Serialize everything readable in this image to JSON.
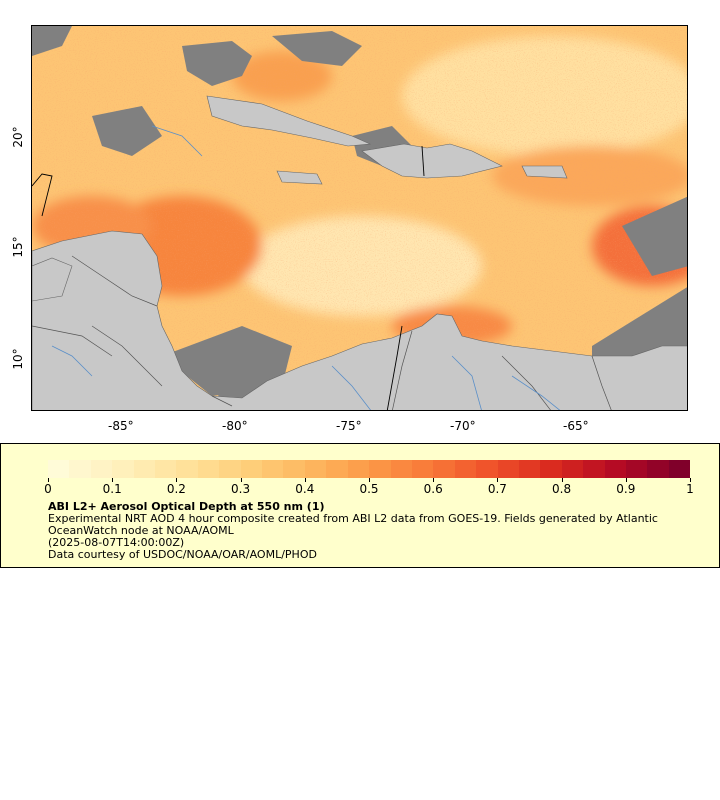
{
  "map": {
    "longitude_labels": [
      "-85°",
      "-80°",
      "-75°",
      "-70°",
      "-65°"
    ],
    "latitude_labels": [
      "20°",
      "15°",
      "10°"
    ],
    "colors": {
      "ocean_low": "#ffe8a8",
      "ocean_mid": "#fdb860",
      "ocean_high": "#f0502a",
      "land": "#c8c8c8",
      "cloud_mask": "#808080",
      "rivers": "#5a8fc8",
      "borders": "#555555"
    }
  },
  "legend": {
    "colorbar_ticks": [
      "0",
      "0.1",
      "0.2",
      "0.3",
      "0.4",
      "0.5",
      "0.6",
      "0.7",
      "0.8",
      "0.9",
      "1"
    ],
    "colorbar_colors": [
      "#fffbd8",
      "#fff0bc",
      "#ffe29c",
      "#fed07c",
      "#fdb860",
      "#fc9a48",
      "#f87838",
      "#ef502a",
      "#d8281e",
      "#b40a24",
      "#80002a"
    ],
    "title": "ABI L2+ Aerosol Optical Depth at 550 nm (1)",
    "description": "Experimental NRT AOD 4 hour composite created from ABI L2 data from GOES-19. Fields generated by Atlantic OceanWatch node at NOAA/AOML",
    "timestamp": "(2025-08-07T14:00:00Z)",
    "credit": "Data courtesy of USDOC/NOAA/OAR/AOML/PHOD"
  }
}
